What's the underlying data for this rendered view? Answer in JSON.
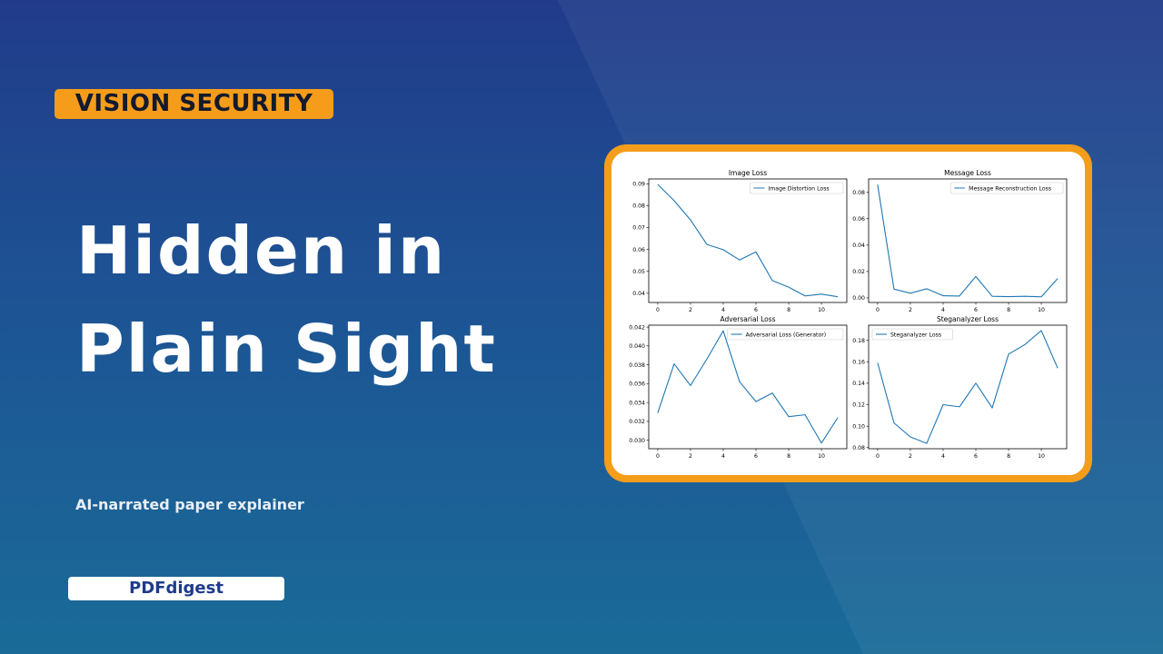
{
  "tag": "VISION SECURITY",
  "title_line1": "Hidden in",
  "title_line2": "Plain Sight",
  "subtitle": "AI-narrated paper explainer",
  "brand": "PDFdigest",
  "colors": {
    "accent": "#f59c1a",
    "line": "#1f77b4",
    "background_top": "#213b8a",
    "background_bottom": "#1a6b98",
    "brand_text": "#1f3a8c"
  },
  "chart_data": [
    {
      "type": "line",
      "title": "Image Loss",
      "legend": "Image Distortion Loss",
      "legend_position": "top-right",
      "x": [
        0,
        1,
        2,
        3,
        4,
        5,
        6,
        7,
        8,
        9,
        10,
        11
      ],
      "y": [
        0.0897,
        0.0823,
        0.0735,
        0.0623,
        0.0599,
        0.0552,
        0.0589,
        0.0458,
        0.0428,
        0.0388,
        0.0396,
        0.0384
      ],
      "xlim": [
        -0.55,
        11.55
      ],
      "ylim": [
        0.0358,
        0.0922
      ],
      "xticks": [
        0,
        2,
        4,
        6,
        8,
        10
      ],
      "xtick_labels": [
        "0",
        "2",
        "4",
        "6",
        "8",
        "10"
      ],
      "yticks": [
        0.04,
        0.05,
        0.06,
        0.07,
        0.08,
        0.09
      ],
      "ytick_labels": [
        "0.04",
        "0.05",
        "0.06",
        "0.07",
        "0.08",
        "0.09"
      ]
    },
    {
      "type": "line",
      "title": "Message Loss",
      "legend": "Message Reconstruction Loss",
      "legend_position": "top-right",
      "x": [
        0,
        1,
        2,
        3,
        4,
        5,
        6,
        7,
        8,
        9,
        10,
        11
      ],
      "y": [
        0.0859,
        0.0066,
        0.0035,
        0.0069,
        0.0016,
        0.0014,
        0.0162,
        0.0012,
        0.0009,
        0.0012,
        0.0008,
        0.0147
      ],
      "xlim": [
        -0.55,
        11.55
      ],
      "ylim": [
        -0.0035,
        0.0902
      ],
      "xticks": [
        0,
        2,
        4,
        6,
        8,
        10
      ],
      "xtick_labels": [
        "0",
        "2",
        "4",
        "6",
        "8",
        "10"
      ],
      "yticks": [
        0,
        0.02,
        0.04,
        0.06,
        0.08
      ],
      "ytick_labels": [
        "0.00",
        "0.02",
        "0.04",
        "0.06",
        "0.08"
      ]
    },
    {
      "type": "line",
      "title": "Adversarial Loss",
      "legend": "Adversarial Loss (Generator)",
      "legend_position": "top-right",
      "x": [
        0,
        1,
        2,
        3,
        4,
        5,
        6,
        7,
        8,
        9,
        10,
        11
      ],
      "y": [
        0.0329,
        0.0381,
        0.0358,
        0.0386,
        0.0416,
        0.0362,
        0.0341,
        0.035,
        0.0325,
        0.0327,
        0.0297,
        0.0324
      ],
      "xlim": [
        -0.55,
        11.55
      ],
      "ylim": [
        0.0291,
        0.0422
      ],
      "xticks": [
        0,
        2,
        4,
        6,
        8,
        10
      ],
      "xtick_labels": [
        "0",
        "2",
        "4",
        "6",
        "8",
        "10"
      ],
      "yticks": [
        0.03,
        0.032,
        0.034,
        0.036,
        0.038,
        0.04,
        0.042
      ],
      "ytick_labels": [
        "0.030",
        "0.032",
        "0.034",
        "0.036",
        "0.038",
        "0.040",
        "0.042"
      ]
    },
    {
      "type": "line",
      "title": "Steganalyzer Loss",
      "legend": "Steganalyzer Loss",
      "legend_position": "top-left",
      "x": [
        0,
        1,
        2,
        3,
        4,
        5,
        6,
        7,
        8,
        9,
        10,
        11
      ],
      "y": [
        0.159,
        0.103,
        0.09,
        0.084,
        0.12,
        0.118,
        0.14,
        0.117,
        0.167,
        0.176,
        0.189,
        0.154
      ],
      "xlim": [
        -0.55,
        11.55
      ],
      "ylim": [
        0.079,
        0.194
      ],
      "xticks": [
        0,
        2,
        4,
        6,
        8,
        10
      ],
      "xtick_labels": [
        "0",
        "2",
        "4",
        "6",
        "8",
        "10"
      ],
      "yticks": [
        0.08,
        0.1,
        0.12,
        0.14,
        0.16,
        0.18
      ],
      "ytick_labels": [
        "0.08",
        "0.10",
        "0.12",
        "0.14",
        "0.16",
        "0.18"
      ]
    }
  ]
}
